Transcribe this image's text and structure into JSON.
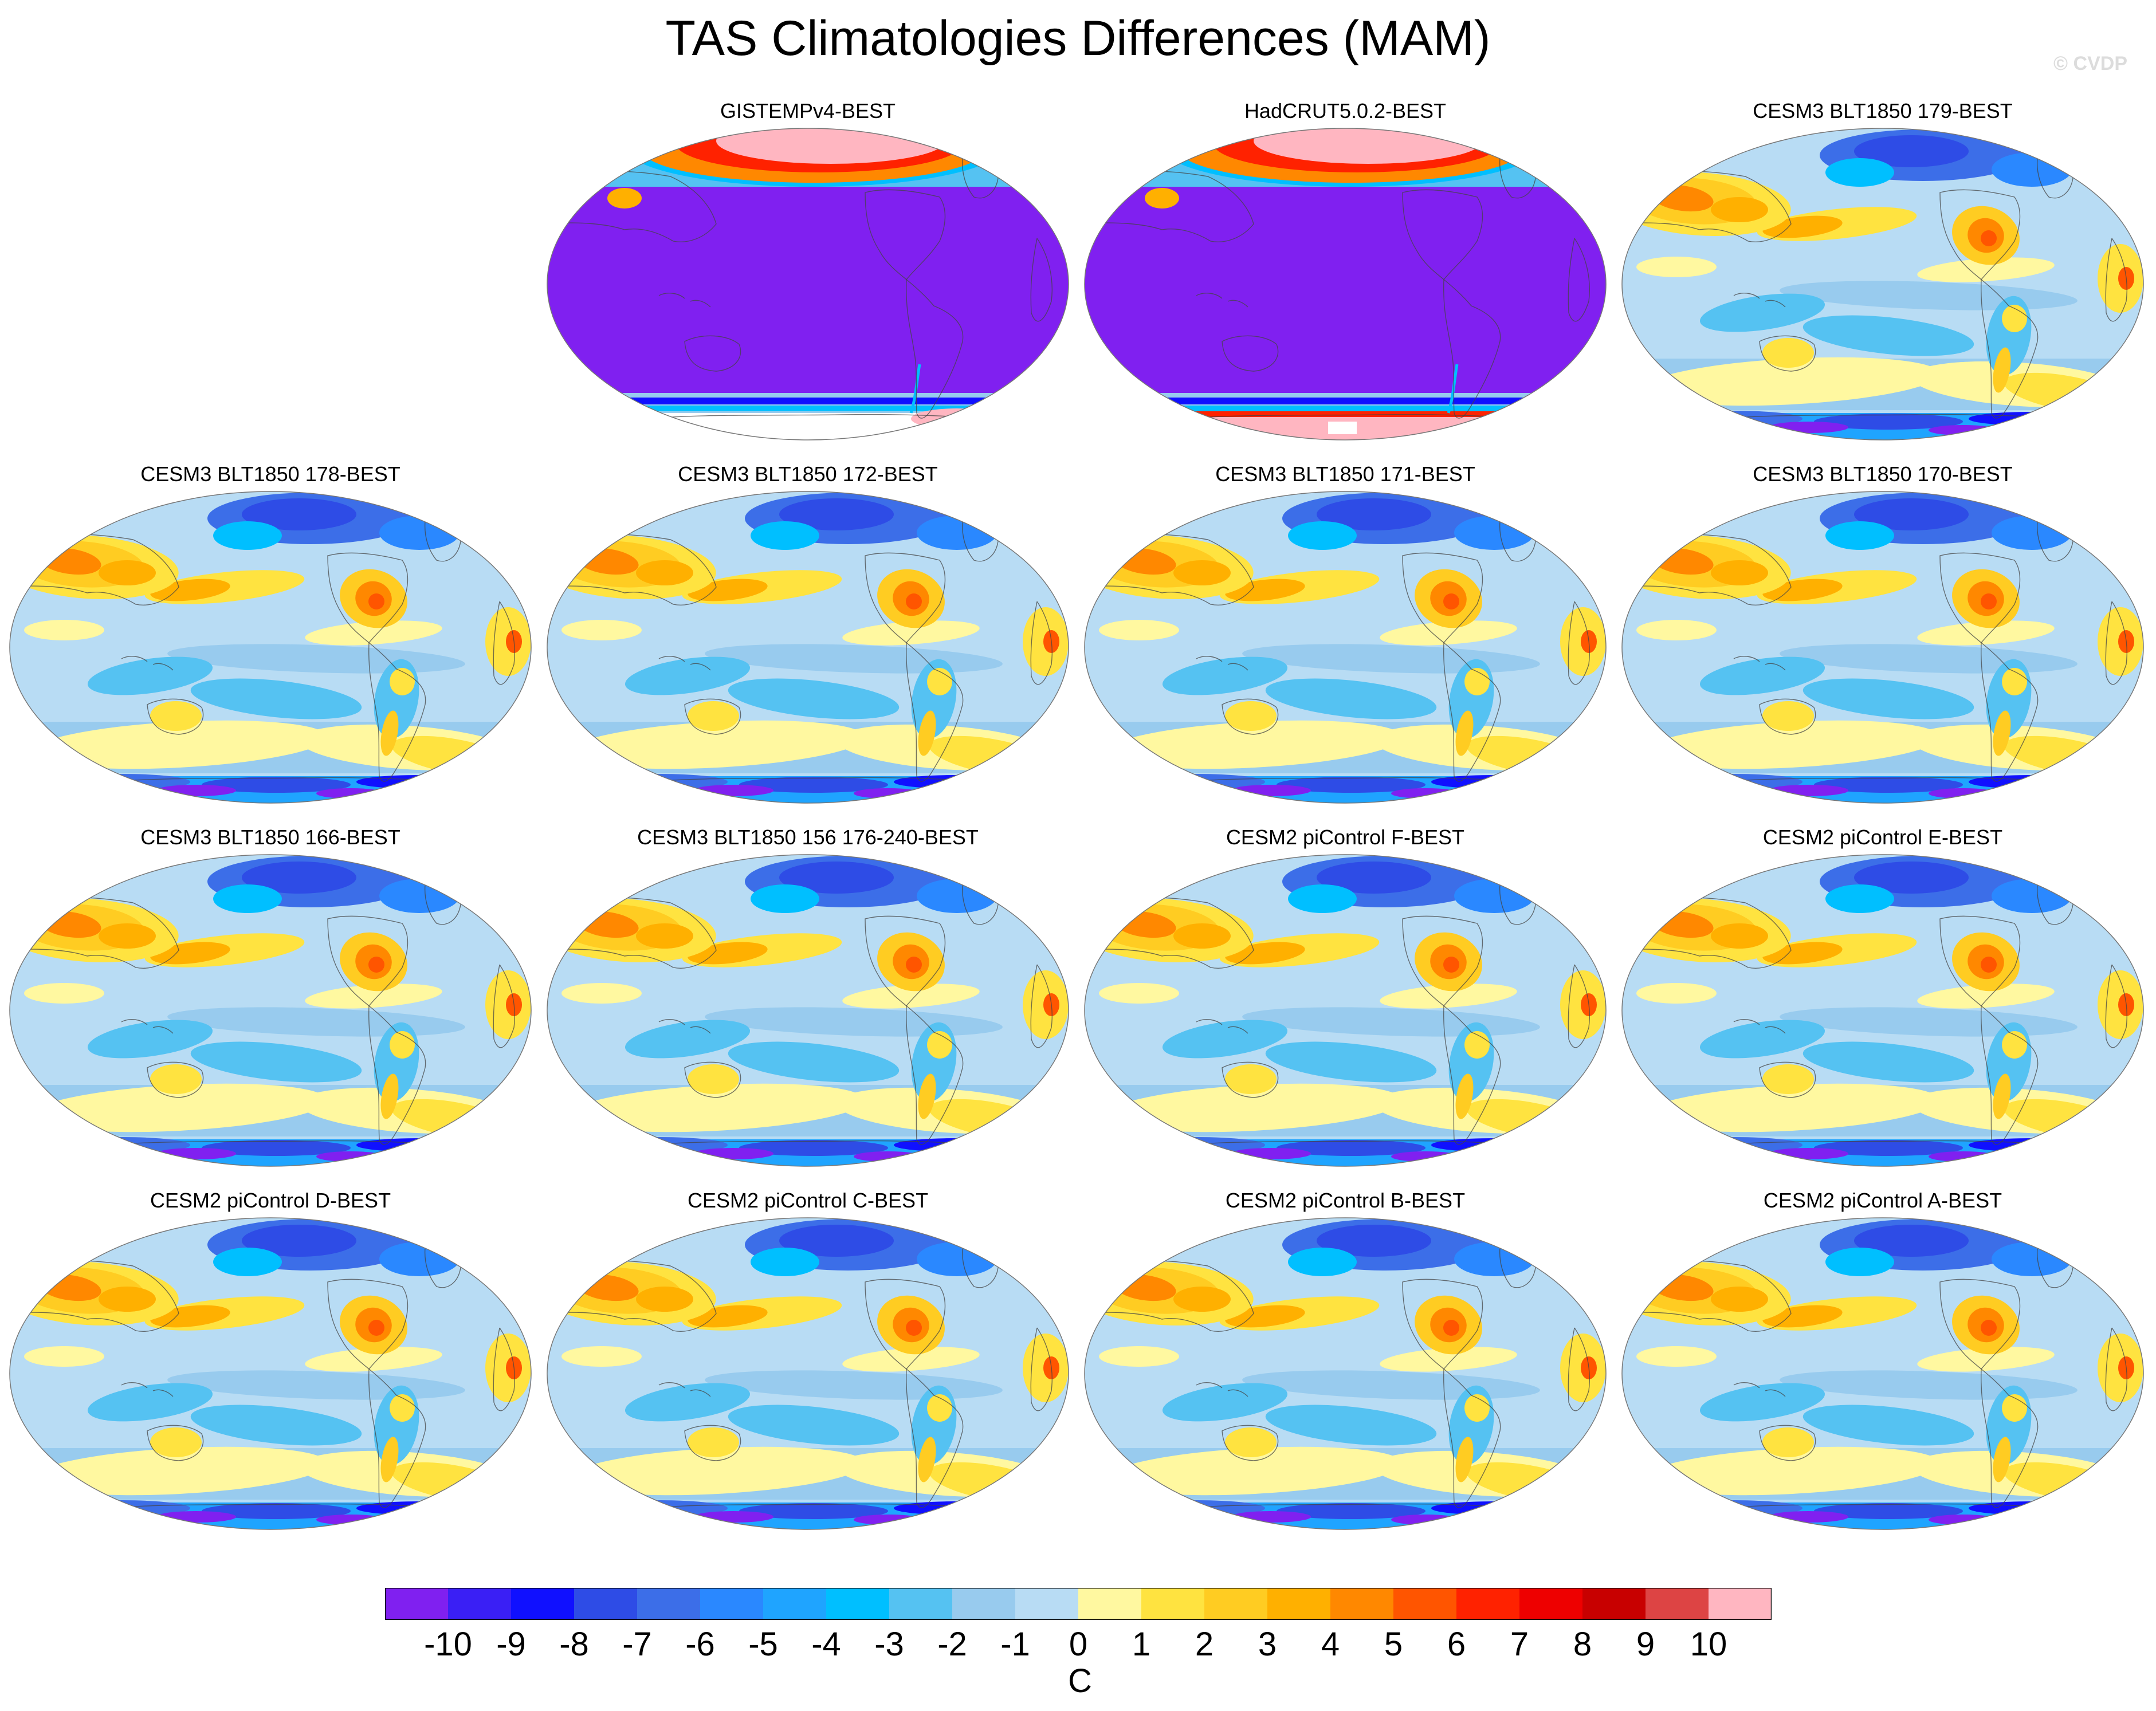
{
  "title": "TAS Climatologies Differences (MAM)",
  "watermark": "© CVDP",
  "units": "C",
  "colorbar": {
    "labels": [
      "-10",
      "-9",
      "-8",
      "-7",
      "-6",
      "-5",
      "-4",
      "-3",
      "-2",
      "-1",
      "0",
      "1",
      "2",
      "3",
      "4",
      "5",
      "6",
      "7",
      "8",
      "9",
      "10"
    ],
    "colors": [
      "#8020f0",
      "#3a1ff5",
      "#1010ff",
      "#2e4ce6",
      "#3c6ee8",
      "#2a88ff",
      "#1fa4ff",
      "#00bfff",
      "#55c2f2",
      "#98cbee",
      "#b8dcf4",
      "#fff8a0",
      "#ffe340",
      "#ffcc22",
      "#ffb000",
      "#ff8800",
      "#ff5500",
      "#ff2200",
      "#ee0000",
      "#c80000",
      "#dd4444",
      "#ffb6c1"
    ]
  },
  "panels": [
    {
      "label": "GISTEMPv4-BEST",
      "pattern": "obs"
    },
    {
      "label": "HadCRUT5.0.2-BEST",
      "pattern": "obs"
    },
    {
      "label": "CESM3 BLT1850 179-BEST",
      "pattern": "model"
    },
    {
      "label": "CESM3 BLT1850 178-BEST",
      "pattern": "model"
    },
    {
      "label": "CESM3 BLT1850 172-BEST",
      "pattern": "model"
    },
    {
      "label": "CESM3 BLT1850 171-BEST",
      "pattern": "model"
    },
    {
      "label": "CESM3 BLT1850 170-BEST",
      "pattern": "model"
    },
    {
      "label": "CESM3 BLT1850 166-BEST",
      "pattern": "model"
    },
    {
      "label": "CESM3 BLT1850 156 176-240-BEST",
      "pattern": "model"
    },
    {
      "label": "CESM2 piControl F-BEST",
      "pattern": "model"
    },
    {
      "label": "CESM2 piControl E-BEST",
      "pattern": "model"
    },
    {
      "label": "CESM2 piControl D-BEST",
      "pattern": "model"
    },
    {
      "label": "CESM2 piControl C-BEST",
      "pattern": "model"
    },
    {
      "label": "CESM2 piControl B-BEST",
      "pattern": "model"
    },
    {
      "label": "CESM2 piControl A-BEST",
      "pattern": "model"
    }
  ]
}
